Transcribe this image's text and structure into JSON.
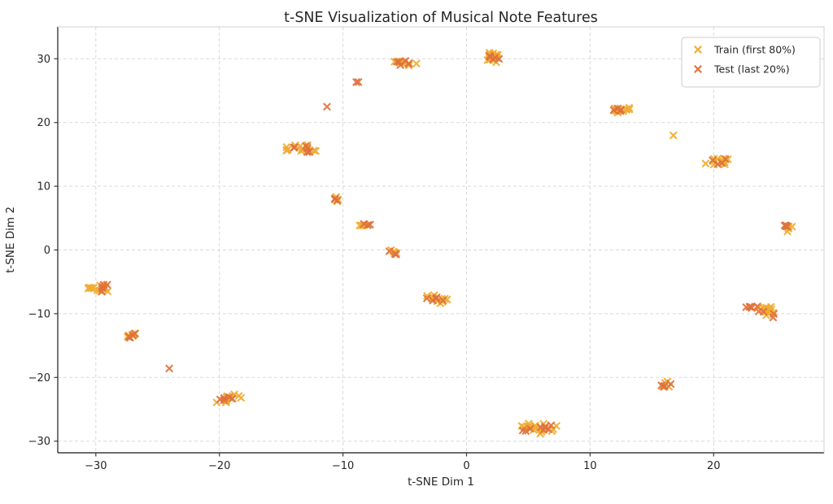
{
  "chart_data": {
    "type": "scatter",
    "title": "t-SNE Visualization of Musical Note Features",
    "xlabel": "t-SNE Dim 1",
    "ylabel": "t-SNE Dim 2",
    "xlim": [
      -33.1,
      29.0
    ],
    "ylim": [
      -31.8,
      35.0
    ],
    "grid": true,
    "x_ticks": [
      -30,
      -20,
      -10,
      0,
      10,
      20
    ],
    "x_tick_labels": [
      "−30",
      "−20",
      "−10",
      "0",
      "10",
      "20"
    ],
    "y_ticks": [
      30,
      20,
      10,
      0,
      -10,
      -20,
      -30
    ],
    "y_tick_labels": [
      "30",
      "20",
      "10",
      "0",
      "−10",
      "−20",
      "−30"
    ],
    "legend": {
      "position": "upper right",
      "entries": [
        {
          "label": "Train (first 80%)",
          "color": "#EFAD33",
          "marker": "x"
        },
        {
          "label": "Test (last 20%)",
          "color": "#E0713C",
          "marker": "x"
        }
      ]
    },
    "marker_style": {
      "shape": "x",
      "half_size": 4.2,
      "stroke_width": 2.1,
      "opacity": 0.92
    },
    "clusters": [
      {
        "x": 2.2,
        "y": 30.3,
        "train": 18,
        "test": 5,
        "sx": 0.35,
        "sy": 0.4
      },
      {
        "x": -5.0,
        "y": 29.4,
        "train": 8,
        "test": 6,
        "sx": 0.45,
        "sy": 0.25
      },
      {
        "x": -8.9,
        "y": 26.3,
        "train": 0,
        "test": 2,
        "sx": 0.12,
        "sy": 0.1
      },
      {
        "x": -11.3,
        "y": 22.5,
        "train": 0,
        "test": 1,
        "sx": 0.05,
        "sy": 0.05
      },
      {
        "x": 12.4,
        "y": 22.0,
        "train": 12,
        "test": 4,
        "sx": 0.5,
        "sy": 0.28,
        "tdx": -0.2
      },
      {
        "x": 16.7,
        "y": 18.0,
        "train": 1,
        "test": 0,
        "sx": 0.05,
        "sy": 0.05
      },
      {
        "x": -13.2,
        "y": 15.9,
        "train": 14,
        "test": 6,
        "sx": 0.65,
        "sy": 0.3
      },
      {
        "x": 20.4,
        "y": 13.8,
        "train": 12,
        "test": 4,
        "sx": 0.5,
        "sy": 0.32
      },
      {
        "x": -10.4,
        "y": 8.0,
        "train": 4,
        "test": 3,
        "sx": 0.28,
        "sy": 0.18
      },
      {
        "x": -8.3,
        "y": 3.8,
        "train": 4,
        "test": 3,
        "sx": 0.28,
        "sy": 0.2
      },
      {
        "x": 25.9,
        "y": 3.5,
        "train": 6,
        "test": 4,
        "sx": 0.28,
        "sy": 0.3
      },
      {
        "x": -5.9,
        "y": -0.4,
        "train": 4,
        "test": 3,
        "sx": 0.3,
        "sy": 0.18
      },
      {
        "x": -29.6,
        "y": -6.0,
        "train": 14,
        "test": 5,
        "sx": 0.75,
        "sy": 0.3
      },
      {
        "x": -2.3,
        "y": -7.7,
        "train": 10,
        "test": 5,
        "sx": 0.5,
        "sy": 0.32,
        "tdx": -0.3
      },
      {
        "x": 23.0,
        "y": -8.9,
        "train": 1,
        "test": 5,
        "sx": 0.3,
        "sy": 0.15
      },
      {
        "x": 24.4,
        "y": -9.6,
        "train": 12,
        "test": 4,
        "sx": 0.45,
        "sy": 0.55,
        "tdy": -0.3
      },
      {
        "x": -27.1,
        "y": -13.4,
        "train": 8,
        "test": 4,
        "sx": 0.4,
        "sy": 0.32
      },
      {
        "x": -24.0,
        "y": -18.6,
        "train": 0,
        "test": 1,
        "sx": 0.05,
        "sy": 0.05
      },
      {
        "x": -19.3,
        "y": -23.3,
        "train": 10,
        "test": 5,
        "sx": 0.5,
        "sy": 0.3,
        "tdx": -0.2
      },
      {
        "x": 16.2,
        "y": -21.2,
        "train": 4,
        "test": 4,
        "sx": 0.28,
        "sy": 0.26
      },
      {
        "x": 5.7,
        "y": -27.9,
        "train": 18,
        "test": 9,
        "sx": 0.75,
        "sy": 0.45,
        "tdx": -0.2,
        "tdy": -0.15
      }
    ]
  }
}
